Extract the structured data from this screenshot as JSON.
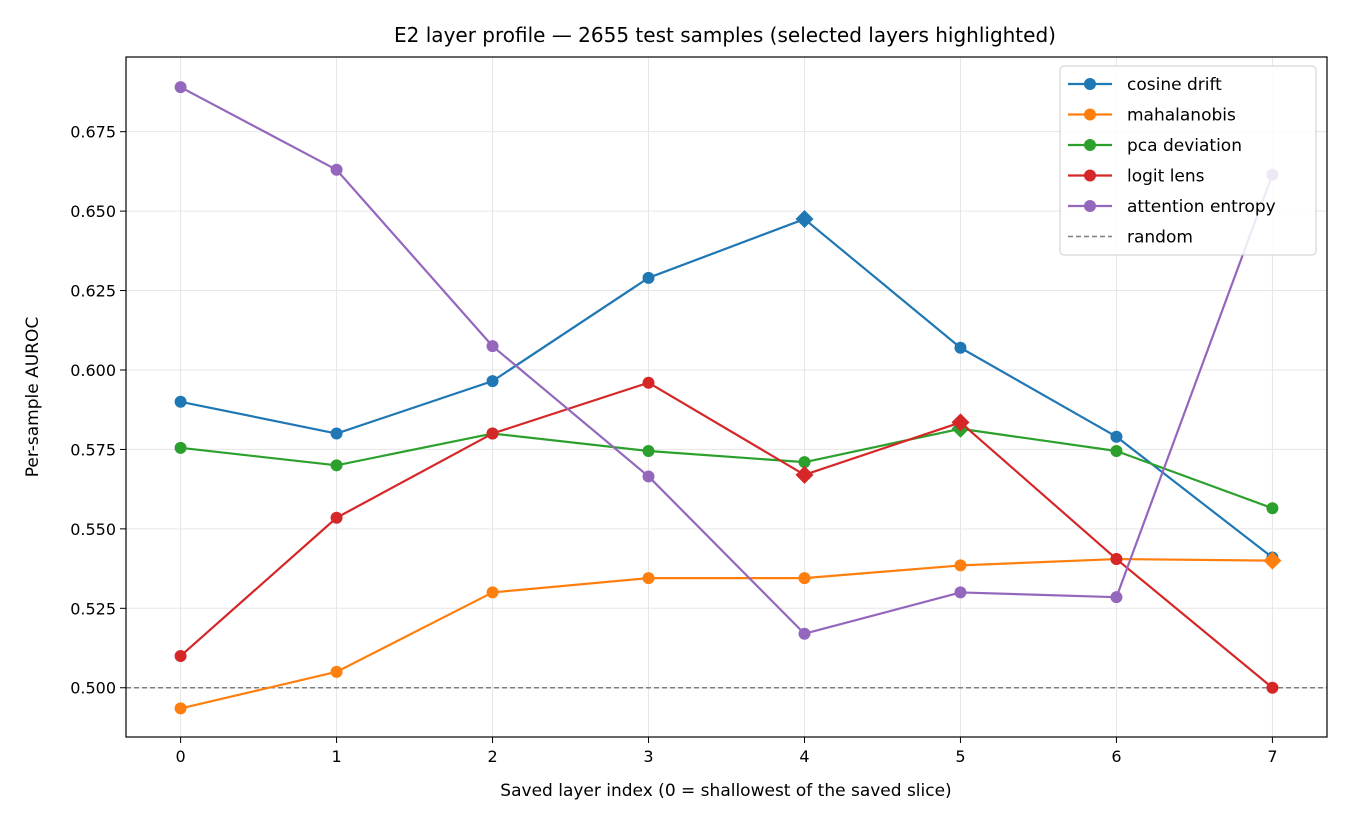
{
  "chart_data": {
    "type": "line",
    "title": "E2 layer profile — 2655 test samples (selected layers highlighted)",
    "xlabel": "Saved layer index (0 = shallowest of the saved slice)",
    "ylabel": "Per-sample AUROC",
    "x": [
      0,
      1,
      2,
      3,
      4,
      5,
      6,
      7
    ],
    "xticks": [
      "0",
      "1",
      "2",
      "3",
      "4",
      "5",
      "6",
      "7"
    ],
    "xlim": [
      -0.35,
      7.35
    ],
    "ylim": [
      0.4845,
      0.6985
    ],
    "yticks": [
      "0.500",
      "0.525",
      "0.550",
      "0.575",
      "0.600",
      "0.625",
      "0.650",
      "0.675"
    ],
    "ytick_values": [
      0.5,
      0.525,
      0.55,
      0.575,
      0.6,
      0.625,
      0.65,
      0.675
    ],
    "grid": true,
    "legend_position": "top-right",
    "series": [
      {
        "name": "cosine drift",
        "color": "#1f77b4",
        "values": [
          0.59,
          0.58,
          0.5965,
          0.629,
          0.6475,
          0.607,
          0.579,
          0.541
        ],
        "highlighted": [
          4
        ]
      },
      {
        "name": "mahalanobis",
        "color": "#ff7f0e",
        "values": [
          0.4935,
          0.505,
          0.53,
          0.5345,
          0.5345,
          0.5385,
          0.5405,
          0.54
        ],
        "highlighted": [
          7
        ]
      },
      {
        "name": "pca deviation",
        "color": "#2ca02c",
        "values": [
          0.5755,
          0.57,
          0.58,
          0.5745,
          0.571,
          0.5815,
          0.5745,
          0.5565
        ],
        "highlighted": [
          5
        ]
      },
      {
        "name": "logit lens",
        "color": "#d62728",
        "values": [
          0.51,
          0.5535,
          0.58,
          0.596,
          0.567,
          0.5835,
          0.5405,
          0.5
        ],
        "highlighted": [
          4,
          5
        ]
      },
      {
        "name": "attention entropy",
        "color": "#9467bd",
        "values": [
          0.689,
          0.663,
          0.6075,
          0.5665,
          0.517,
          0.53,
          0.5285,
          0.6615
        ],
        "highlighted": []
      }
    ],
    "reference_line": {
      "name": "random",
      "value": 0.5,
      "color": "#808080",
      "style": "dashed"
    }
  }
}
